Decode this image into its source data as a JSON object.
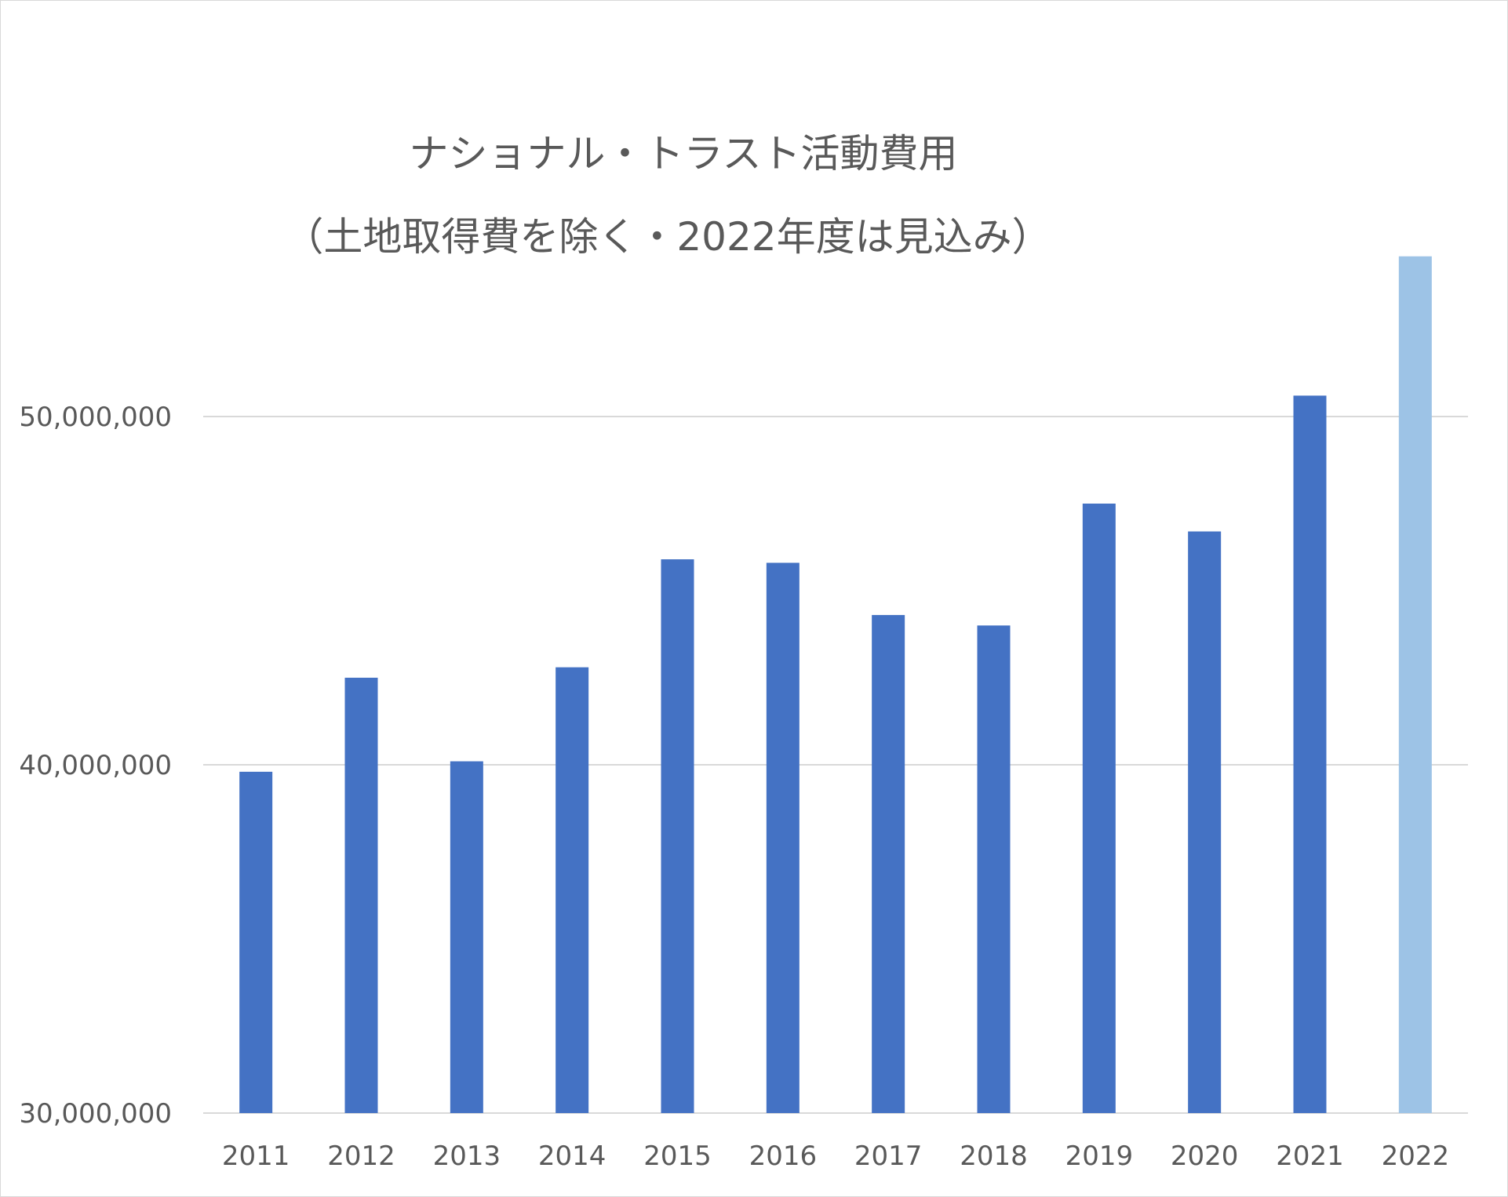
{
  "chart_data": {
    "type": "bar",
    "title_lines": [
      "ナショナル・トラスト活動費用",
      "（土地取得費を除く・2022年度は見込み）"
    ],
    "xlabel": "",
    "ylabel": "",
    "categories": [
      "2011",
      "2012",
      "2013",
      "2014",
      "2015",
      "2016",
      "2017",
      "2018",
      "2019",
      "2020",
      "2021",
      "2022"
    ],
    "values": [
      39800000,
      42500000,
      40100000,
      42800000,
      45900000,
      45800000,
      44300000,
      44000000,
      47500000,
      46700000,
      50600000,
      54600000
    ],
    "projected": [
      false,
      false,
      false,
      false,
      false,
      false,
      false,
      false,
      false,
      false,
      false,
      true
    ],
    "ylim": [
      30000000,
      50000000
    ],
    "yticks": [
      30000000,
      40000000,
      50000000
    ],
    "ytick_labels": [
      "30,000,000",
      "40,000,000",
      "50,000,000"
    ],
    "grid": true,
    "legend": "none",
    "colors": {
      "bar": "#4472c4",
      "projected_bar": "#9dc3e6",
      "grid": "#d9d9d9",
      "text": "#595959"
    }
  }
}
